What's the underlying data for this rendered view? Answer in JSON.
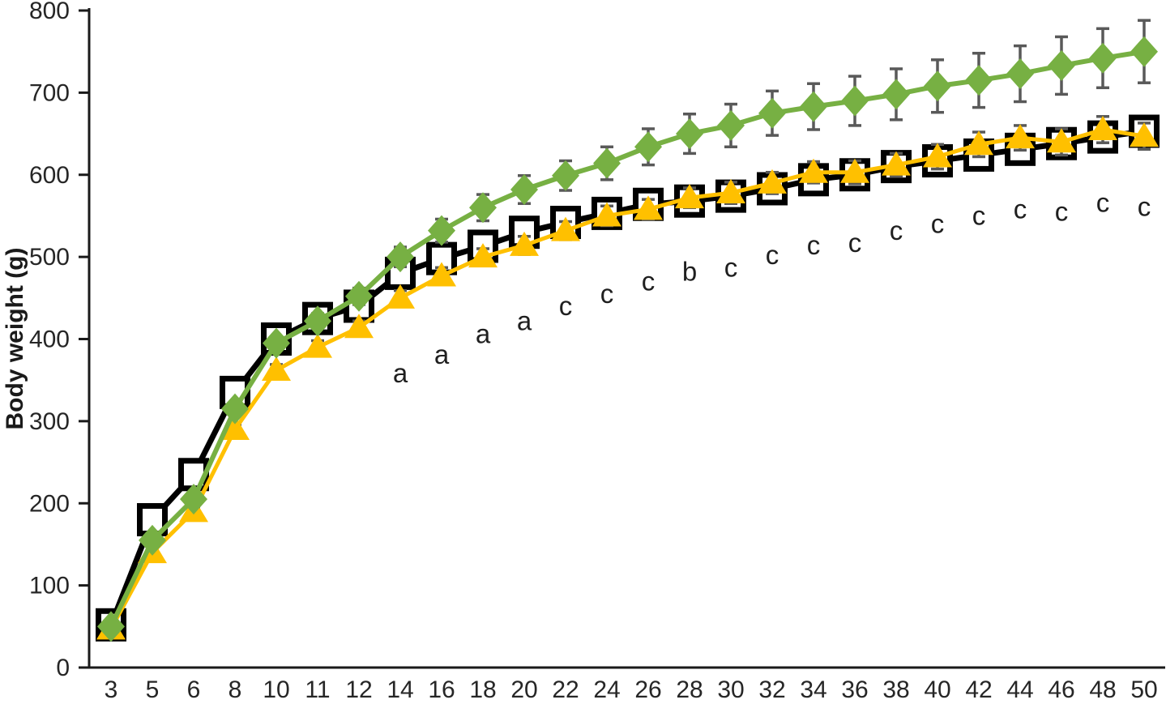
{
  "chart_data": {
    "type": "line",
    "title": "",
    "xlabel": "",
    "ylabel": "Body weight (g)",
    "x_categories": [
      3,
      5,
      6,
      8,
      10,
      11,
      12,
      14,
      16,
      18,
      20,
      22,
      24,
      26,
      28,
      30,
      32,
      34,
      36,
      38,
      40,
      42,
      44,
      46,
      48,
      50
    ],
    "ylim": [
      0,
      800
    ],
    "y_ticks": [
      0,
      100,
      200,
      300,
      400,
      500,
      600,
      700,
      800
    ],
    "grid": false,
    "legend_position": "none",
    "axis_color": "#1a1a1a",
    "tick_label_color": "#262626",
    "error_bar_color": "#595959",
    "series": [
      {
        "name": "open-square-black",
        "marker": "square",
        "color": "#000000",
        "marker_fill": "#ffffff",
        "line_width": 7,
        "values": [
          52,
          180,
          235,
          335,
          400,
          425,
          440,
          480,
          498,
          513,
          530,
          542,
          553,
          564,
          568,
          574,
          583,
          594,
          600,
          610,
          617,
          624,
          631,
          638,
          646,
          653
        ],
        "errors": [
          4,
          5,
          5,
          6,
          7,
          8,
          8,
          9,
          10,
          10,
          11,
          11,
          12,
          12,
          12,
          13,
          13,
          13,
          14,
          14,
          14,
          15,
          15,
          15,
          16,
          17
        ]
      },
      {
        "name": "triangle-yellow",
        "marker": "triangle",
        "color": "#FFC000",
        "marker_fill": "#FFC000",
        "line_width": 5,
        "values": [
          47,
          140,
          190,
          290,
          362,
          390,
          414,
          450,
          477,
          500,
          514,
          532,
          550,
          558,
          572,
          578,
          590,
          603,
          603,
          612,
          622,
          637,
          645,
          640,
          655,
          647
        ],
        "errors": [
          4,
          5,
          5,
          6,
          7,
          8,
          8,
          9,
          10,
          10,
          11,
          11,
          12,
          12,
          12,
          13,
          13,
          13,
          14,
          14,
          15,
          15,
          15,
          16,
          16,
          16
        ]
      },
      {
        "name": "diamond-green",
        "marker": "diamond",
        "color": "#77B043",
        "marker_fill": "#77B043",
        "line_width": 6,
        "values": [
          50,
          155,
          205,
          315,
          395,
          422,
          452,
          500,
          532,
          560,
          582,
          599,
          614,
          634,
          650,
          660,
          675,
          683,
          690,
          698,
          708,
          715,
          723,
          733,
          742,
          750
        ],
        "errors": [
          5,
          6,
          6,
          8,
          8,
          9,
          10,
          12,
          14,
          16,
          17,
          18,
          20,
          22,
          24,
          26,
          27,
          28,
          30,
          31,
          32,
          33,
          34,
          35,
          36,
          38
        ]
      }
    ],
    "significance_letters": [
      {
        "week": 14,
        "label": "a",
        "y": 347
      },
      {
        "week": 16,
        "label": "a",
        "y": 370
      },
      {
        "week": 18,
        "label": "a",
        "y": 395
      },
      {
        "week": 20,
        "label": "a",
        "y": 411
      },
      {
        "week": 22,
        "label": "c",
        "y": 429
      },
      {
        "week": 24,
        "label": "c",
        "y": 444
      },
      {
        "week": 26,
        "label": "c",
        "y": 459
      },
      {
        "week": 28,
        "label": "b",
        "y": 471
      },
      {
        "week": 30,
        "label": "c",
        "y": 476
      },
      {
        "week": 32,
        "label": "c",
        "y": 491
      },
      {
        "week": 34,
        "label": "c",
        "y": 503
      },
      {
        "week": 36,
        "label": "c",
        "y": 506
      },
      {
        "week": 38,
        "label": "c",
        "y": 521
      },
      {
        "week": 40,
        "label": "c",
        "y": 529
      },
      {
        "week": 42,
        "label": "c",
        "y": 539
      },
      {
        "week": 44,
        "label": "c",
        "y": 547
      },
      {
        "week": 46,
        "label": "c",
        "y": 544
      },
      {
        "week": 48,
        "label": "c",
        "y": 555
      },
      {
        "week": 50,
        "label": "c",
        "y": 550
      }
    ]
  }
}
